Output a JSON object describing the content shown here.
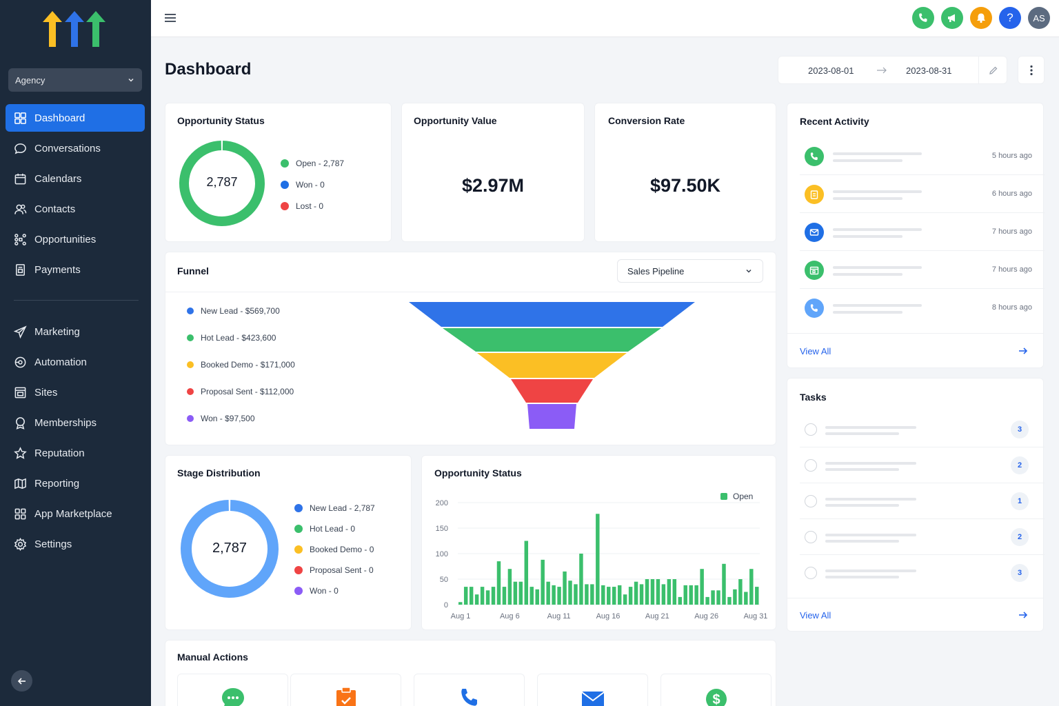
{
  "sidebar": {
    "account": "Agency",
    "items": [
      {
        "label": "Dashboard",
        "icon": "dashboard-icon",
        "active": true
      },
      {
        "label": "Conversations",
        "icon": "chat-icon"
      },
      {
        "label": "Calendars",
        "icon": "calendar-icon"
      },
      {
        "label": "Contacts",
        "icon": "contacts-icon"
      },
      {
        "label": "Opportunities",
        "icon": "opportunities-icon"
      },
      {
        "label": "Payments",
        "icon": "payments-icon"
      }
    ],
    "items2": [
      {
        "label": "Marketing",
        "icon": "send-icon"
      },
      {
        "label": "Automation",
        "icon": "automation-icon"
      },
      {
        "label": "Sites",
        "icon": "sites-icon"
      },
      {
        "label": "Memberships",
        "icon": "memberships-icon"
      },
      {
        "label": "Reputation",
        "icon": "star-icon"
      },
      {
        "label": "Reporting",
        "icon": "reporting-icon"
      },
      {
        "label": "App Marketplace",
        "icon": "marketplace-icon"
      },
      {
        "label": "Settings",
        "icon": "gear-icon"
      }
    ]
  },
  "topbar": {
    "avatar": "AS",
    "help": "?"
  },
  "page": {
    "title": "Dashboard",
    "date_start": "2023-08-01",
    "date_end": "2023-08-31"
  },
  "opportunity_status": {
    "title": "Opportunity Status",
    "center": "2,787",
    "legend": [
      {
        "label": "Open - 2,787",
        "color": "#3bbf6c"
      },
      {
        "label": "Won - 0",
        "color": "#1f6fe5"
      },
      {
        "label": "Lost - 0",
        "color": "#ef4444"
      }
    ]
  },
  "opportunity_value": {
    "title": "Opportunity Value",
    "value": "$2.97M"
  },
  "conversion_rate": {
    "title": "Conversion Rate",
    "value": "$97.50K"
  },
  "recent_activity": {
    "title": "Recent Activity",
    "items": [
      {
        "time": "5 hours ago",
        "icon": "phone-icon",
        "color": "#3bbf6c"
      },
      {
        "time": "6 hours ago",
        "icon": "clipboard-icon",
        "color": "#fbbf24"
      },
      {
        "time": "7 hours ago",
        "icon": "mail-icon",
        "color": "#1f6fe5"
      },
      {
        "time": "7 hours ago",
        "icon": "calendar-icon",
        "color": "#3bbf6c"
      },
      {
        "time": "8 hours ago",
        "icon": "phone-icon",
        "color": "#60a5fa"
      }
    ],
    "view_all": "View All"
  },
  "funnel": {
    "title": "Funnel",
    "pipeline": "Sales Pipeline",
    "stages": [
      {
        "label": "New Lead - $569,700",
        "color": "#2f73e8"
      },
      {
        "label": "Hot Lead - $423,600",
        "color": "#3bbf6c"
      },
      {
        "label": "Booked Demo - $171,000",
        "color": "#fbbf24"
      },
      {
        "label": "Proposal Sent - $112,000",
        "color": "#ef4444"
      },
      {
        "label": "Won - $97,500",
        "color": "#8b5cf6"
      }
    ]
  },
  "tasks": {
    "title": "Tasks",
    "items": [
      {
        "count": "3"
      },
      {
        "count": "2"
      },
      {
        "count": "1"
      },
      {
        "count": "2"
      },
      {
        "count": "3"
      }
    ],
    "view_all": "View All"
  },
  "stage_distribution": {
    "title": "Stage Distribution",
    "center": "2,787",
    "legend": [
      {
        "label": "New Lead - 2,787",
        "color": "#2f73e8"
      },
      {
        "label": "Hot Lead - 0",
        "color": "#3bbf6c"
      },
      {
        "label": "Booked Demo - 0",
        "color": "#fbbf24"
      },
      {
        "label": "Proposal Sent - 0",
        "color": "#ef4444"
      },
      {
        "label": "Won - 0",
        "color": "#8b5cf6"
      }
    ]
  },
  "chart_data": {
    "type": "bar",
    "title": "Opportunity Status",
    "series": [
      {
        "name": "Open",
        "color": "#3bbf6c",
        "values": [
          5,
          35,
          35,
          20,
          35,
          28,
          35,
          85,
          35,
          70,
          45,
          45,
          125,
          35,
          30,
          88,
          45,
          38,
          35,
          65,
          47,
          40,
          100,
          40,
          40,
          178,
          38,
          35,
          35,
          38,
          20,
          35,
          45,
          40,
          50,
          50,
          50,
          40,
          50,
          50,
          15,
          38,
          38,
          38,
          70,
          15,
          28,
          28,
          80,
          15,
          30,
          50,
          25,
          70,
          35
        ]
      }
    ],
    "x_ticks": [
      "Aug 1",
      "Aug 6",
      "Aug 11",
      "Aug 16",
      "Aug 21",
      "Aug 26",
      "Aug 31"
    ],
    "y_ticks": [
      "0",
      "50",
      "100",
      "150",
      "200"
    ],
    "ylim": [
      0,
      200
    ],
    "grid": true,
    "legend_position": "top-right"
  },
  "manual_actions": {
    "title": "Manual Actions",
    "items": [
      {
        "icon": "sms-icon",
        "color": "#3bbf6c"
      },
      {
        "icon": "task-icon",
        "color": "#f97316"
      },
      {
        "icon": "phone-icon",
        "color": "#1f6fe5"
      },
      {
        "icon": "mail-icon",
        "color": "#1f6fe5"
      },
      {
        "icon": "dollar-icon",
        "color": "#3bbf6c"
      }
    ]
  }
}
